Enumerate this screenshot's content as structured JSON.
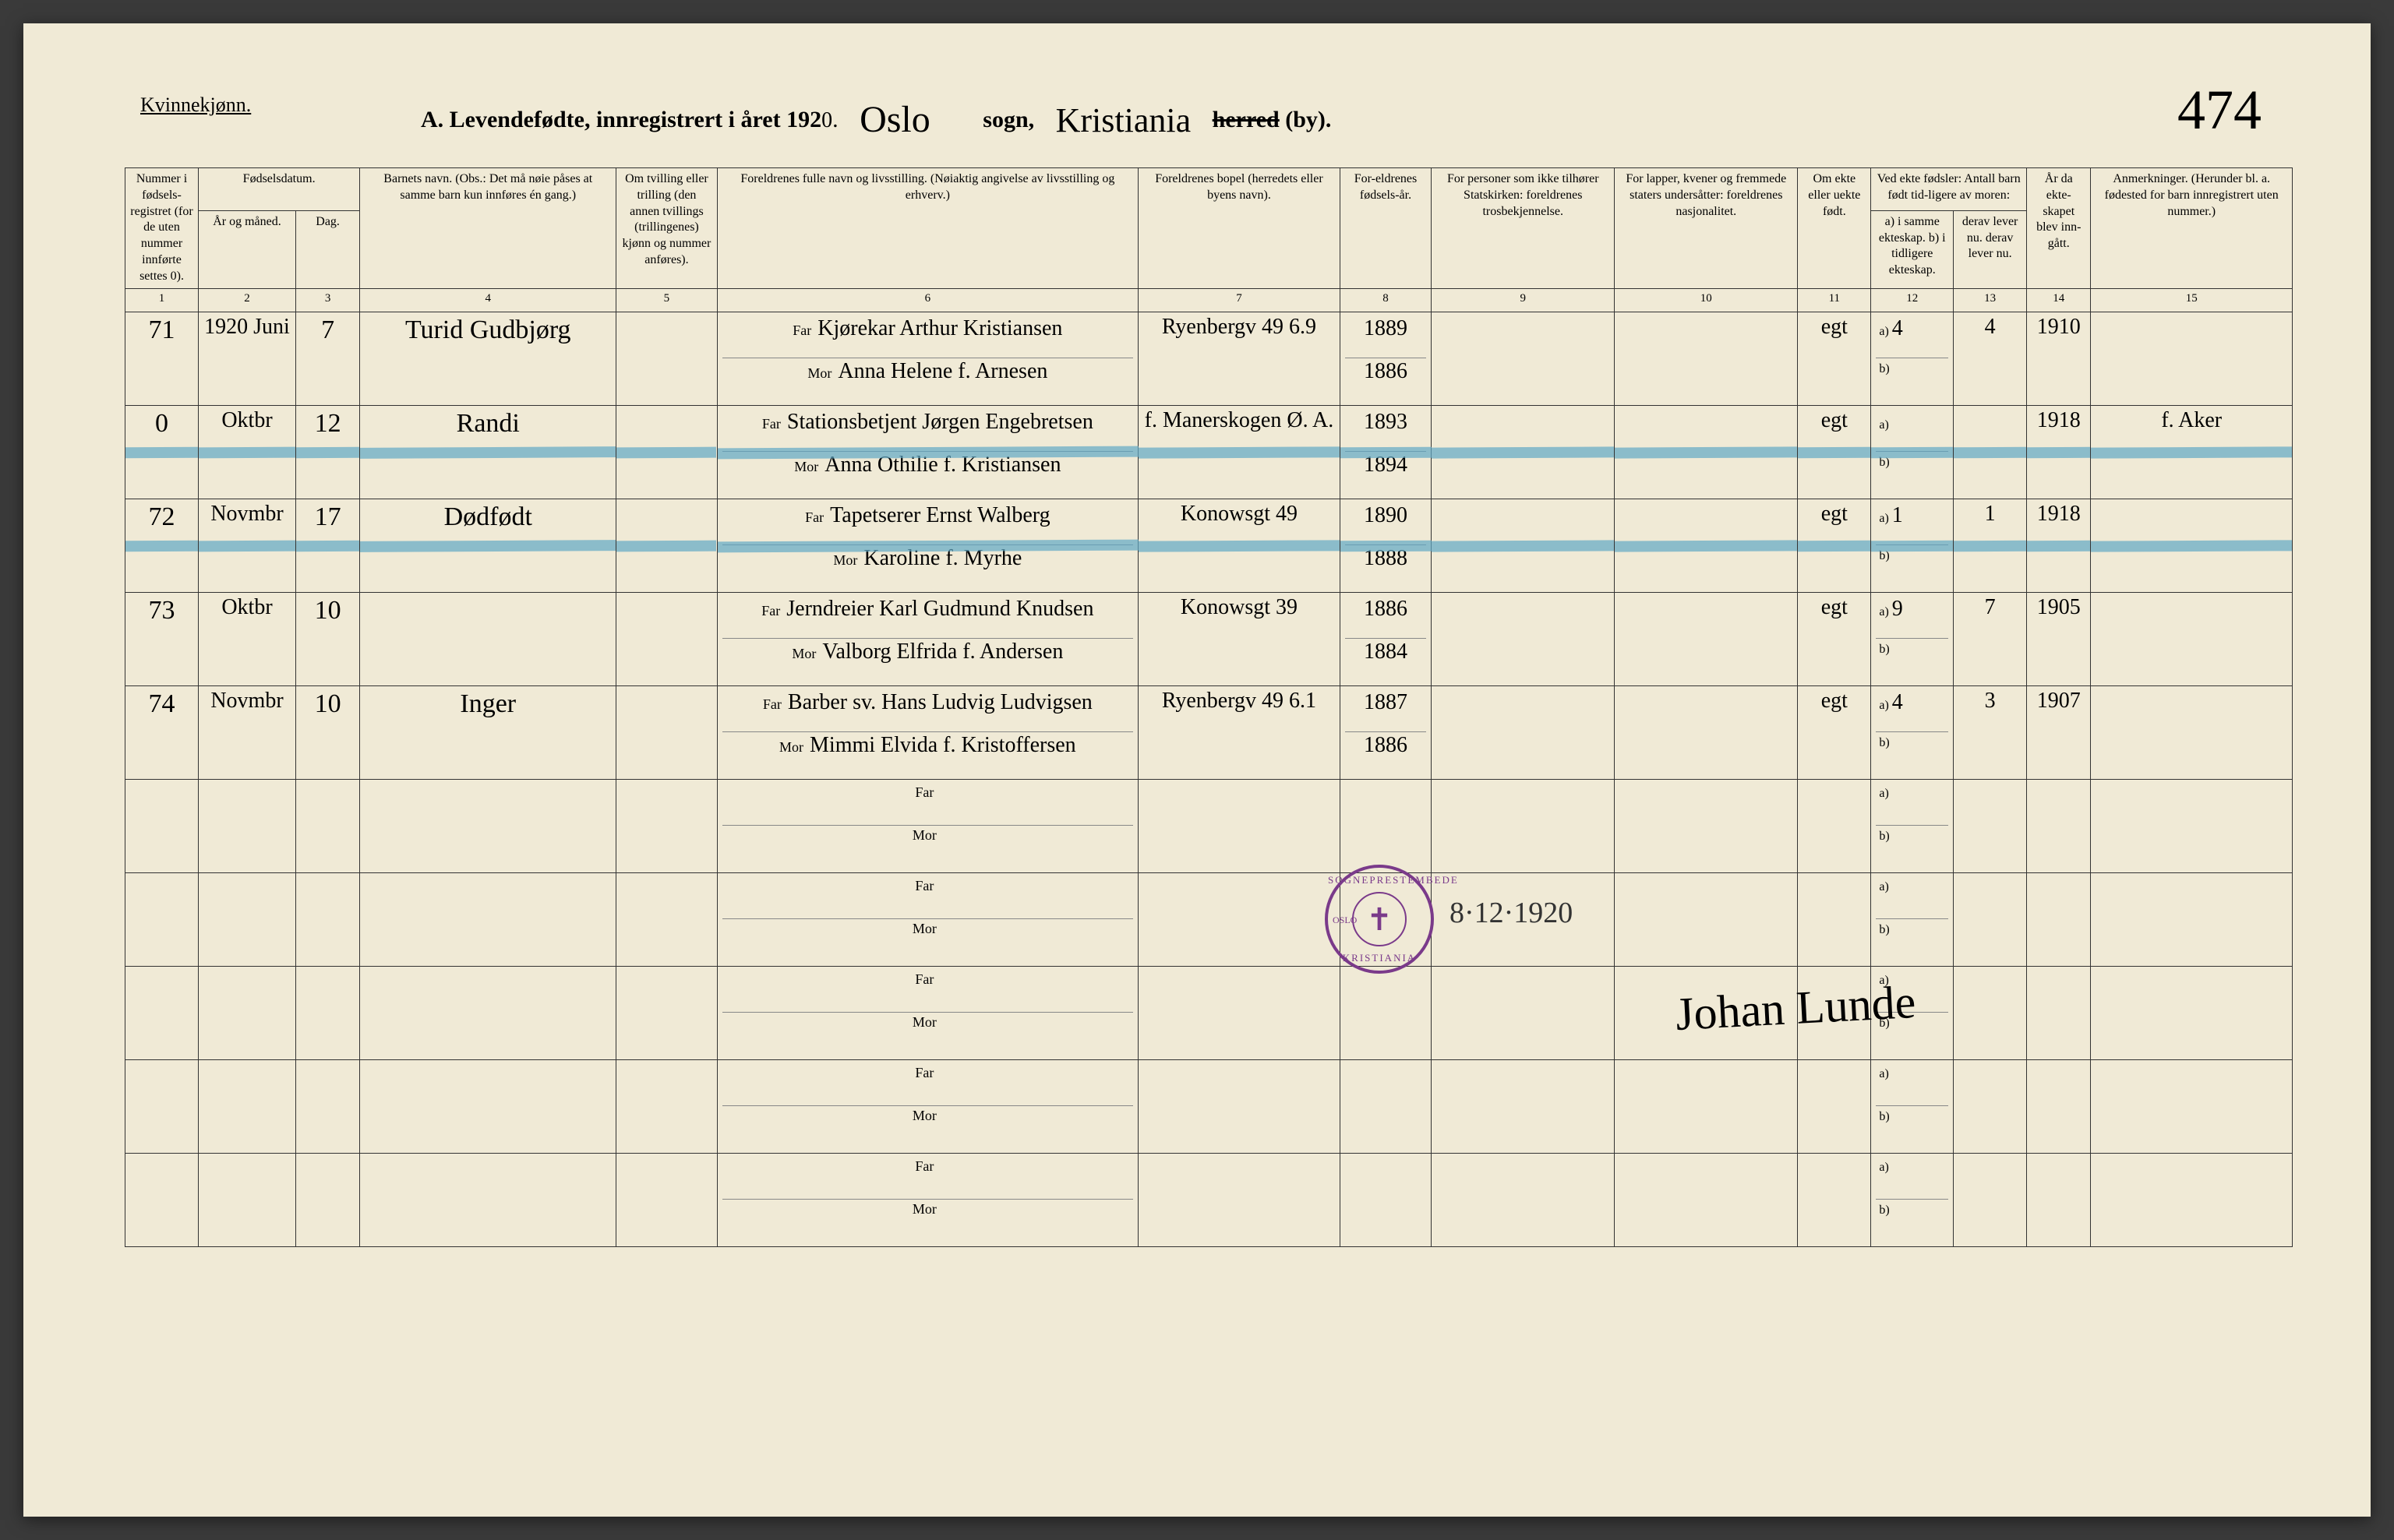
{
  "header": {
    "gender": "Kvinnekjønn.",
    "title_prefix": "A.  Levendefødte, innregistrert i året 192",
    "year_suffix": "0",
    "sogn_hand": "Oslo",
    "sogn_label": "sogn,",
    "by_hand": "Kristiania",
    "herred_strike": "herred",
    "by_suffix": "(by).",
    "page_number": "474"
  },
  "columns": {
    "c1": "Nummer i fødsels-registret (for de uten nummer innførte settes 0).",
    "c2_top": "Fødselsdatum.",
    "c2": "År og måned.",
    "c3": "Dag.",
    "c4": "Barnets navn.\n(Obs.: Det må nøie påses at samme barn kun innføres én gang.)",
    "c5": "Om tvilling eller trilling (den annen tvillings (trillingenes) kjønn og nummer anføres).",
    "c6": "Foreldrenes fulle navn og livsstilling.\n(Nøiaktig angivelse av livsstilling og erhverv.)",
    "c7": "Foreldrenes bopel (herredets eller byens navn).",
    "c8": "For-eldrenes fødsels-år.",
    "c9": "For personer som ikke tilhører Statskirken: foreldrenes trosbekjennelse.",
    "c10": "For lapper, kvener og fremmede staters undersåtter: foreldrenes nasjonalitet.",
    "c11": "Om ekte eller uekte født.",
    "c12_top": "Ved ekte fødsler: Antall barn født tid-ligere av moren:",
    "c12": "a) i samme ekteskap. b) i tidligere ekteskap.",
    "c13": "derav lever nu. derav lever nu.",
    "c14": "År da ekte-skapet blev inn-gått.",
    "c15": "Anmerkninger.\n(Herunder bl. a. fødested for barn innregistrert uten nummer.)"
  },
  "colnums": [
    "1",
    "2",
    "3",
    "4",
    "5",
    "6",
    "7",
    "8",
    "9",
    "10",
    "11",
    "12",
    "13",
    "14",
    "15"
  ],
  "rows": [
    {
      "num": "71",
      "yrmo": "1920 Juni",
      "day": "7",
      "name": "Turid Gudbjørg",
      "far": "Kjørekar Arthur Kristiansen",
      "mor": "Anna Helene f. Arnesen",
      "bopel": "Ryenbergv 49  6.9",
      "faar": "1889",
      "maar": "1886",
      "ekte": "egt",
      "a": "4",
      "derav": "4",
      "aar": "1910",
      "anm": ""
    },
    {
      "num": "0",
      "yrmo": "Oktbr",
      "day": "12",
      "name": "Randi",
      "far": "Stationsbetjent Jørgen Engebretsen",
      "mor": "Anna Othilie f. Kristiansen",
      "bopel": "f. Manerskogen  Ø. A.",
      "faar": "1893",
      "maar": "1894",
      "ekte": "egt",
      "a": "",
      "derav": "",
      "aar": "1918",
      "anm": "f. Aker",
      "struck": true
    },
    {
      "num": "72",
      "yrmo": "Novmbr",
      "day": "17",
      "name": "Dødfødt",
      "far": "Tapetserer Ernst Walberg",
      "mor": "Karoline f. Myrhe",
      "bopel": "Konowsgt 49",
      "faar": "1890",
      "maar": "1888",
      "ekte": "egt",
      "a": "1",
      "derav": "1",
      "aar": "1918",
      "anm": "",
      "struck": true
    },
    {
      "num": "73",
      "yrmo": "Oktbr",
      "day": "10",
      "name": "",
      "far": "Jerndreier Karl Gudmund Knudsen",
      "mor": "Valborg Elfrida f. Andersen",
      "bopel": "Konowsgt 39",
      "faar": "1886",
      "maar": "1884",
      "ekte": "egt",
      "a": "9",
      "derav": "7",
      "aar": "1905",
      "anm": ""
    },
    {
      "num": "74",
      "yrmo": "Novmbr",
      "day": "10",
      "name": "Inger",
      "far": "Barber sv. Hans Ludvig Ludvigsen",
      "mor": "Mimmi Elvida f. Kristoffersen",
      "bopel": "Ryenbergv 49  6.1",
      "faar": "1887",
      "maar": "1886",
      "ekte": "egt",
      "a": "4",
      "derav": "3",
      "aar": "1907",
      "anm": ""
    }
  ],
  "labels": {
    "far": "Far",
    "mor": "Mor",
    "a": "a)",
    "b": "b)"
  },
  "stamp": {
    "top": "SOGNEPRESTEMBEDE",
    "bottom": "KRISTIANIA",
    "left": "OSLO",
    "cross": "✝",
    "date": "8·12·1920"
  },
  "signature": "Johan Lunde"
}
